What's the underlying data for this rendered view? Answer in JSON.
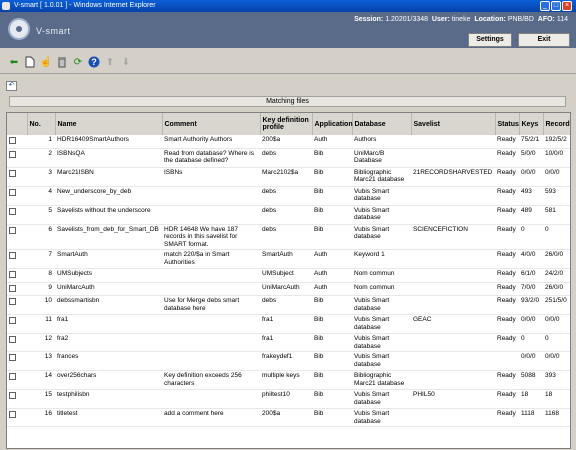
{
  "window": {
    "title": "V-smart [ 1.0.01 ] - Windows Internet Explorer"
  },
  "header": {
    "logo_text": "V-smart",
    "session_label": "Session:",
    "session_value": "1.20201/3348",
    "user_label": "User:",
    "user_value": "tineke",
    "location_label": "Location:",
    "location_value": "PNB/BD",
    "afo_label": "AFO:",
    "afo_value": "114",
    "settings_label": "Settings",
    "exit_label": "Exit"
  },
  "toolbar": {
    "icons": [
      "back-arrow-icon",
      "new-document-icon",
      "select-hand-icon",
      "delete-bin-icon",
      "refresh-icon",
      "help-icon",
      "move-up-icon",
      "move-down-icon"
    ]
  },
  "matching": {
    "label": "Matching files"
  },
  "table": {
    "headers": {
      "no": "No.",
      "name": "Name",
      "comment": "Comment",
      "key": "Key definition profile",
      "application": "Application",
      "database": "Database",
      "savelist": "Savelist",
      "status": "Status",
      "keys": "Keys",
      "records": "Records"
    },
    "rows": [
      {
        "no": "1",
        "name": "HDR16409SmartAuthors",
        "comment": "Smart Authority Authors",
        "key": "200$a",
        "app": "Auth",
        "db": "Authors",
        "savelist": "",
        "status": "Ready",
        "keys": "75/2/1",
        "records": "192/5/2"
      },
      {
        "no": "2",
        "name": "ISBNsQA",
        "comment": "Read from database? Where is the database defined?",
        "key": "debs",
        "app": "Bib",
        "db": "UniMarc/B Database",
        "savelist": "",
        "status": "Ready",
        "keys": "5/0/0",
        "records": "10/0/0"
      },
      {
        "no": "3",
        "name": "Marc21ISBN",
        "comment": "ISBNs",
        "key": "Marc2102$a",
        "app": "Bib",
        "db": "Bibliographic Marc21 database",
        "savelist": "21RECORDSHARVESTED",
        "status": "Ready",
        "keys": "0/0/0",
        "records": "0/0/0"
      },
      {
        "no": "4",
        "name": "New_underscore_by_deb",
        "comment": "",
        "key": "debs",
        "app": "Bib",
        "db": "Vubis Smart database",
        "savelist": "",
        "status": "Ready",
        "keys": "493",
        "records": "593"
      },
      {
        "no": "5",
        "name": "Savelists without the underscore",
        "comment": "",
        "key": "debs",
        "app": "Bib",
        "db": "Vubis Smart database",
        "savelist": "",
        "status": "Ready",
        "keys": "489",
        "records": "581"
      },
      {
        "no": "6",
        "name": "Savelists_from_deb_for_Smart_DB",
        "comment": "HDR 14648 We have 187 records in this savelist for SMART format.",
        "key": "debs",
        "app": "Bib",
        "db": "Vubis Smart database",
        "savelist": "SCIENCEFICTION",
        "status": "Ready",
        "keys": "0",
        "records": "0"
      },
      {
        "no": "7",
        "name": "SmartAuth",
        "comment": "match 220/$a in Smart Authorities",
        "key": "SmartAuth",
        "app": "Auth",
        "db": "Keyword 1",
        "savelist": "",
        "status": "Ready",
        "keys": "4/0/0",
        "records": "26/0/0"
      },
      {
        "no": "8",
        "name": "UMSubjects",
        "comment": "",
        "key": "UMSubject",
        "app": "Auth",
        "db": "Nom commun",
        "savelist": "",
        "status": "Ready",
        "keys": "6/1/0",
        "records": "24/2/0"
      },
      {
        "no": "9",
        "name": "UniMarcAuth",
        "comment": "",
        "key": "UniMarcAuth",
        "app": "Auth",
        "db": "Nom commun",
        "savelist": "",
        "status": "Ready",
        "keys": "7/0/0",
        "records": "26/0/0"
      },
      {
        "no": "10",
        "name": "debssmartisbn",
        "comment": "Use for Merge debs smart database here",
        "key": "debs",
        "app": "Bib",
        "db": "Vubis Smart database",
        "savelist": "",
        "status": "Ready",
        "keys": "93/2/0",
        "records": "251/5/0"
      },
      {
        "no": "11",
        "name": "fra1",
        "comment": "",
        "key": "fra1",
        "app": "Bib",
        "db": "Vubis Smart database",
        "savelist": "GEAC",
        "status": "Ready",
        "keys": "0/0/0",
        "records": "0/0/0"
      },
      {
        "no": "12",
        "name": "fra2",
        "comment": "",
        "key": "fra1",
        "app": "Bib",
        "db": "Vubis Smart database",
        "savelist": "",
        "status": "Ready",
        "keys": "0",
        "records": "0"
      },
      {
        "no": "13",
        "name": "frances",
        "comment": "",
        "key": "frakeydef1",
        "app": "Bib",
        "db": "Vubis Smart database",
        "savelist": "",
        "status": "",
        "keys": "0/0/0",
        "records": "0/0/0"
      },
      {
        "no": "14",
        "name": "over256chars",
        "comment": "Key definition exceeds 256 characters",
        "key": "multiple keys",
        "app": "Bib",
        "db": "Bibliographic Marc21 database",
        "savelist": "",
        "status": "Ready",
        "keys": "5088",
        "records": "393"
      },
      {
        "no": "15",
        "name": "testphilisbn",
        "comment": "",
        "key": "philtest10",
        "app": "Bib",
        "db": "Vubis Smart database",
        "savelist": "PHIL50",
        "status": "Ready",
        "keys": "18",
        "records": "18"
      },
      {
        "no": "16",
        "name": "titletest",
        "comment": "add a comment here",
        "key": "200$a",
        "app": "Bib",
        "db": "Vubis Smart database",
        "savelist": "",
        "status": "Ready",
        "keys": "1118",
        "records": "1168"
      }
    ]
  }
}
